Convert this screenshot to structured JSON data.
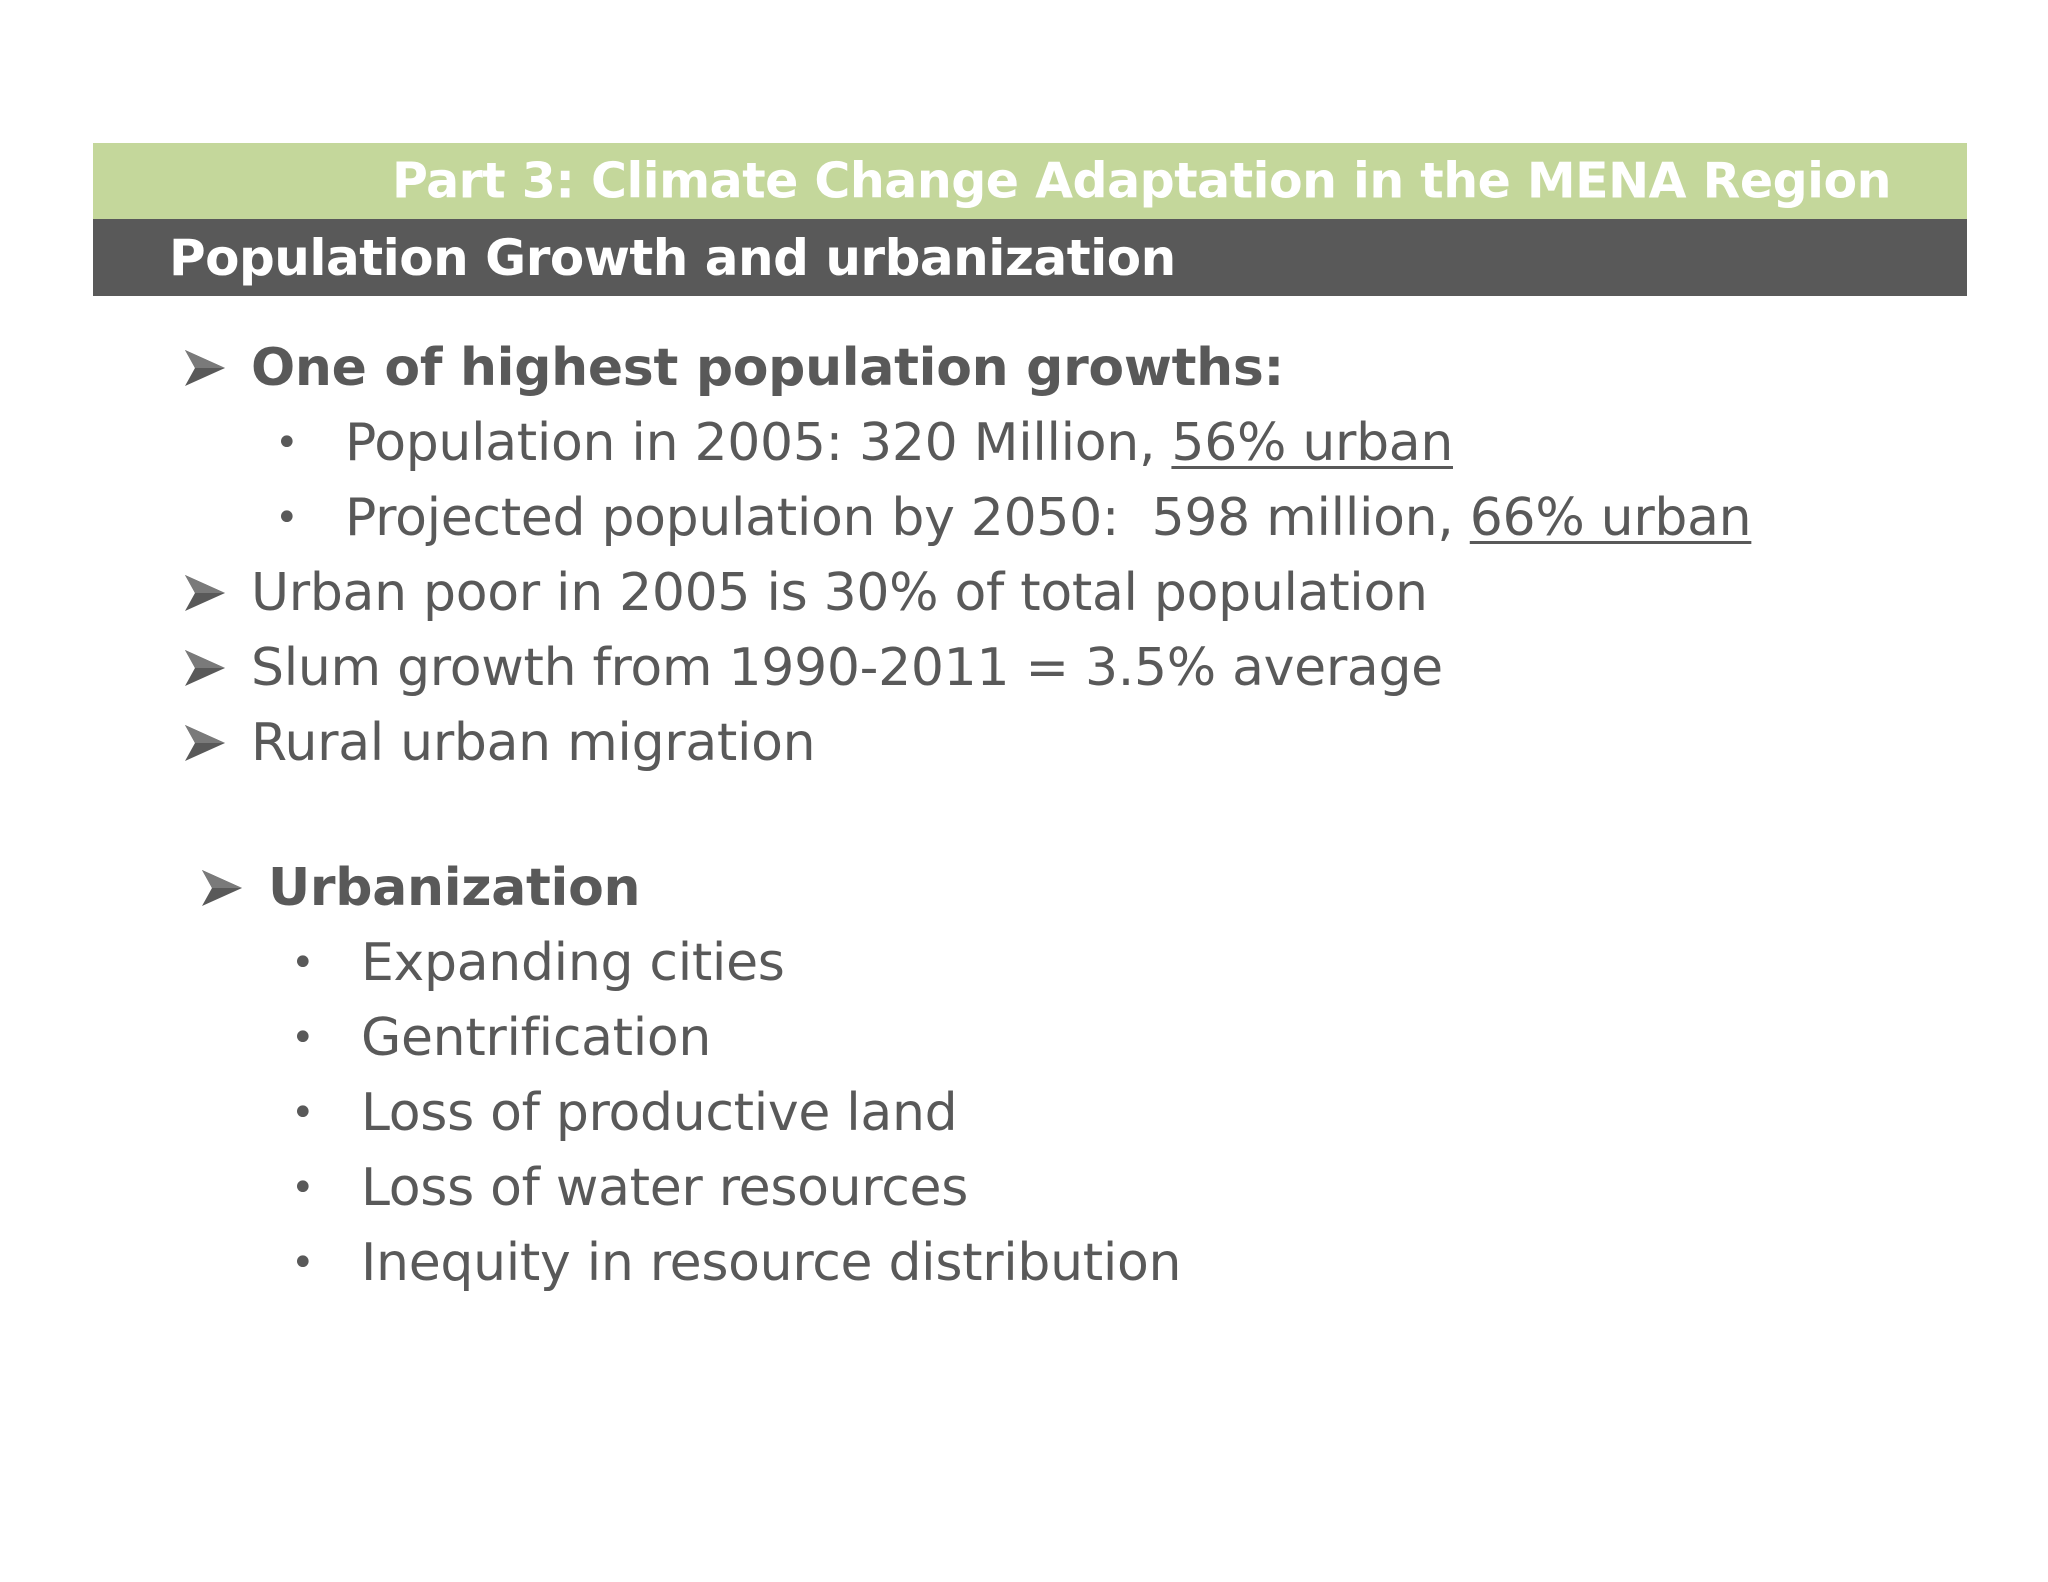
{
  "header": {
    "part_title": "Part 3: Climate Change Adaptation in the MENA Region",
    "section_title": "Population Growth and urbanization"
  },
  "content": {
    "group1": {
      "heading": "One of highest population growths:",
      "sub": [
        {
          "prefix": "Population in 2005: 320 Million, ",
          "underlined": "56% urban"
        },
        {
          "prefix": "Projected population by 2050:  598 million, ",
          "underlined": "66% urban"
        }
      ]
    },
    "points": [
      "Urban poor in 2005 is 30% of total population",
      "Slum growth from 1990-2011 = 3.5% average",
      "Rural urban migration"
    ],
    "group2": {
      "heading": "Urbanization",
      "sub": [
        "Expanding cities",
        "Gentrification",
        "Loss of productive land",
        "Loss of water resources",
        "Inequity in resource distribution"
      ]
    }
  },
  "colors": {
    "green_banner": "#c4d79b",
    "dark_banner": "#595959",
    "text": "#595959"
  },
  "icons": {
    "level1_bullet": "arrowhead-icon",
    "level2_bullet": "dot-icon"
  }
}
